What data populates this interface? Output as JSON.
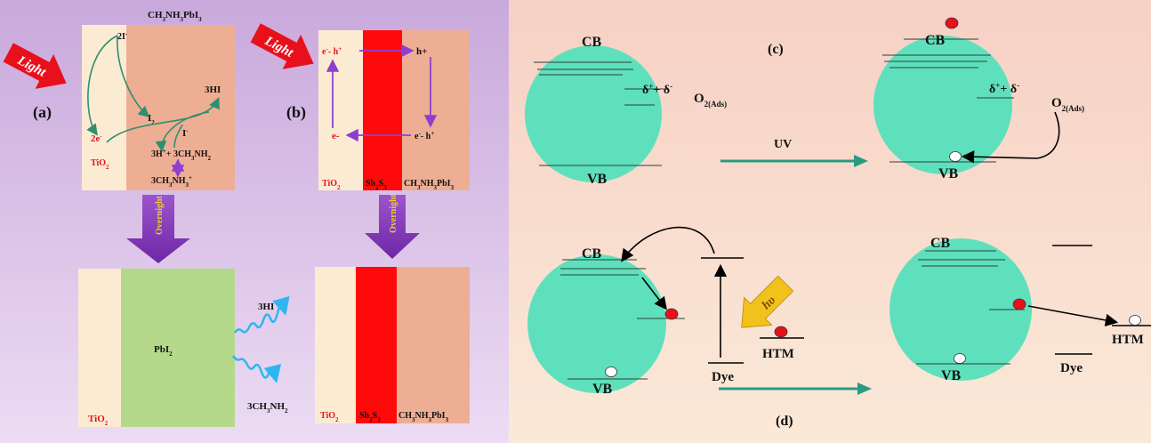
{
  "panel_a": {
    "tag": "(a)",
    "light": "Light",
    "compound_html": "CH<tspan baseline-shift='sub' font-size='7'>3</tspan>NH<tspan baseline-shift='sub' font-size='7'>3</tspan>PbI<tspan baseline-shift='sub' font-size='7'>3</tspan>",
    "iodide_2": "2I",
    "electron_2": "2e",
    "i2": "I",
    "i_minus": "I",
    "hi3": "3HI",
    "h_plus": "3H",
    "plus_methylamine": "+ 3CH",
    "nh2": "NH",
    "ion": "3CH",
    "ion_tail": "NH",
    "tio2": "TiO",
    "overnight": "Overnight",
    "pbi2": "PbI",
    "tio2_bottom": "TiO",
    "hi3_out": "3HI",
    "methylamine_out": "3CH",
    "methylamine_out_tail": "NH"
  },
  "panel_b": {
    "tag": "(b)",
    "light": "Light",
    "eh_left": "e",
    "eh_left_h": "- h",
    "h_plus": "h+",
    "e_minus": "e-",
    "eh_right": "e",
    "eh_right_h": "- h",
    "tio2": "TiO",
    "sb2s3": "Sb",
    "perovskite": "CH",
    "overnight": "Overnight",
    "tio2_bottom": "TiO",
    "sb2s3_bottom": "Sb",
    "perovskite_bottom": "CH"
  },
  "panel_c": {
    "tag": "(c)",
    "cb": "CB",
    "vb": "VB",
    "delta": "δ",
    "plus": "+ δ",
    "o2": "O",
    "ads": "2(Ads)",
    "uv": "UV",
    "cb2": "CB",
    "vb2": "VB",
    "delta2": "δ",
    "plus2": "+ δ",
    "o2_2": "O",
    "ads2": "2(Ads)"
  },
  "panel_d": {
    "tag": "(d)",
    "cb": "CB",
    "vb": "VB",
    "hv": "hυ",
    "htm": "HTM",
    "dye": "Dye",
    "cb2": "CB",
    "vb2": "VB",
    "htm2": "HTM",
    "dye2": "Dye"
  },
  "colors": {
    "left_background": "#d4b6e2",
    "right_background": "#f8dccb",
    "tio2_layer": "#fcebd3",
    "perovskite_layer": "#eeae94",
    "sb2s3_layer": "#ff0a0a",
    "pbi2_layer": "#b4d98a",
    "sphere": "#5fe0bd",
    "arrow_red": "#e8101a",
    "overnight_arrow": "#7a2eb4",
    "green_arrow": "#2a9a83",
    "hv_arrow": "#f2c21c"
  }
}
